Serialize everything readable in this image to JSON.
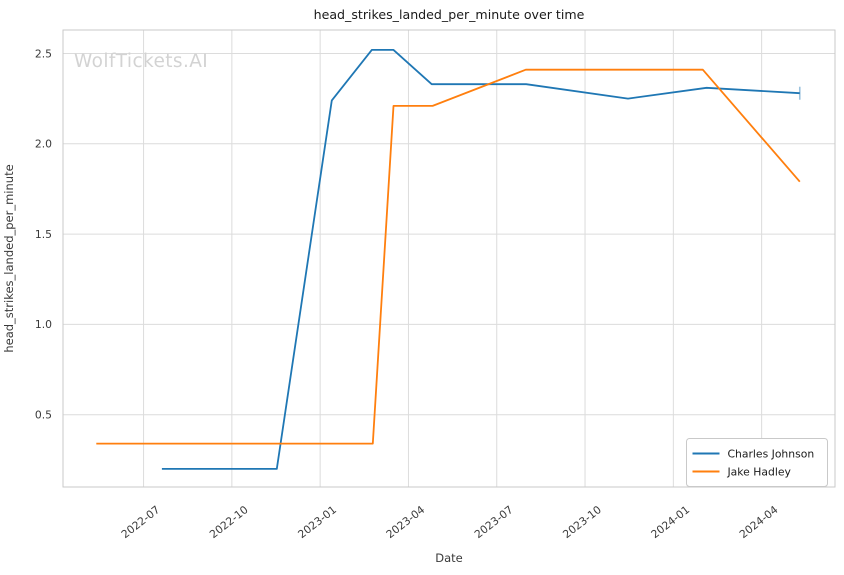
{
  "chart_data": {
    "type": "line",
    "title": "head_strikes_landed_per_minute over time",
    "xlabel": "Date",
    "ylabel": "head_strikes_landed_per_minute",
    "watermark": "WolfTickets.AI",
    "grid": true,
    "x_tick_labels": [
      "2022-07",
      "2022-10",
      "2023-01",
      "2023-04",
      "2023-07",
      "2023-10",
      "2024-01",
      "2024-04"
    ],
    "y_tick_labels": [
      "0.5",
      "1.0",
      "1.5",
      "2.0",
      "2.5"
    ],
    "xlim": [
      "2022-04-09",
      "2024-06-16"
    ],
    "ylim": [
      0.1,
      2.63
    ],
    "legend": {
      "position": "lower right"
    },
    "series": [
      {
        "name": "Charles Johnson",
        "color": "#1f77b4",
        "end_marker": "vertical-tick",
        "points": [
          {
            "date": "2022-07-20",
            "value": 0.2
          },
          {
            "date": "2022-11-17",
            "value": 0.2
          },
          {
            "date": "2023-01-13",
            "value": 2.24
          },
          {
            "date": "2023-02-24",
            "value": 2.52
          },
          {
            "date": "2023-03-16",
            "value": 2.52
          },
          {
            "date": "2023-04-25",
            "value": 2.33
          },
          {
            "date": "2023-08-01",
            "value": 2.33
          },
          {
            "date": "2023-11-15",
            "value": 2.25
          },
          {
            "date": "2024-02-05",
            "value": 2.31
          },
          {
            "date": "2024-05-10",
            "value": 2.28
          }
        ]
      },
      {
        "name": "Jake Hadley",
        "color": "#ff7f0e",
        "end_marker": "none",
        "points": [
          {
            "date": "2022-05-13",
            "value": 0.34
          },
          {
            "date": "2023-02-25",
            "value": 0.34
          },
          {
            "date": "2023-03-16",
            "value": 2.21
          },
          {
            "date": "2023-04-26",
            "value": 2.21
          },
          {
            "date": "2023-07-31",
            "value": 2.41
          },
          {
            "date": "2024-02-01",
            "value": 2.41
          },
          {
            "date": "2024-05-10",
            "value": 1.79
          }
        ]
      }
    ],
    "colors": {
      "background": "#ffffff",
      "grid": "#dcdcdc",
      "spine": "#c9c9c9",
      "tick_text": "#3a3a3a",
      "title_text": "#1a1a1a",
      "watermark": "#d3d3d3"
    }
  }
}
